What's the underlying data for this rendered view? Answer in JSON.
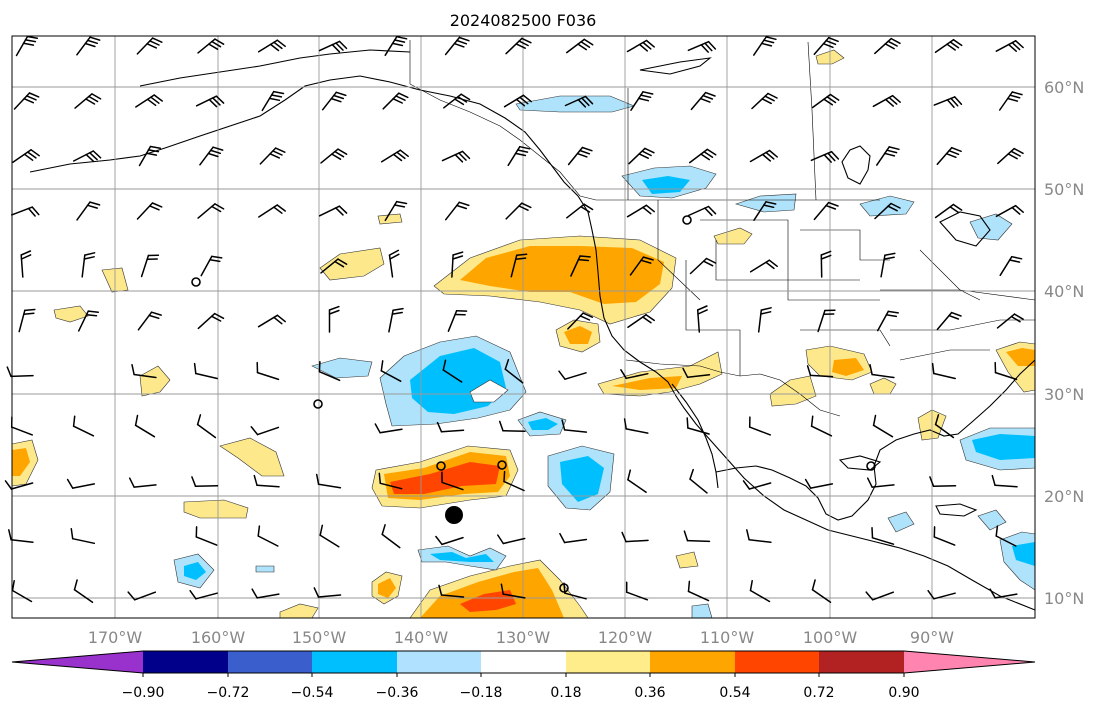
{
  "title": "2024082500 F036",
  "map": {
    "lon_range": [
      -180,
      -80
    ],
    "lat_range": [
      8,
      65
    ],
    "lon_labels": [
      "170°W",
      "160°W",
      "150°W",
      "140°W",
      "130°W",
      "120°W",
      "110°W",
      "100°W",
      "90°W"
    ],
    "lat_labels": [
      "60°N",
      "50°N",
      "40°N",
      "30°N",
      "20°N",
      "10°N"
    ],
    "grid": true,
    "field_colors": {
      "neg_strong": "#00bfff",
      "neg_weak": "#aee3fb",
      "pos_weak": "#fde98c",
      "pos_mid": "#ffa500",
      "pos_strong": "#ff4500"
    }
  },
  "colorbar": {
    "orientation": "horizontal",
    "ticks": [
      "−0.90",
      "−0.72",
      "−0.54",
      "−0.36",
      "−0.18",
      "0.18",
      "0.36",
      "0.54",
      "0.72",
      "0.90"
    ],
    "colors": [
      "#9932cc",
      "#00008b",
      "#3a5fcd",
      "#00bfff",
      "#b0e2ff",
      "#ffffff",
      "#ffec8b",
      "#ffa500",
      "#ff4500",
      "#b22222",
      "#ff85b0"
    ]
  }
}
